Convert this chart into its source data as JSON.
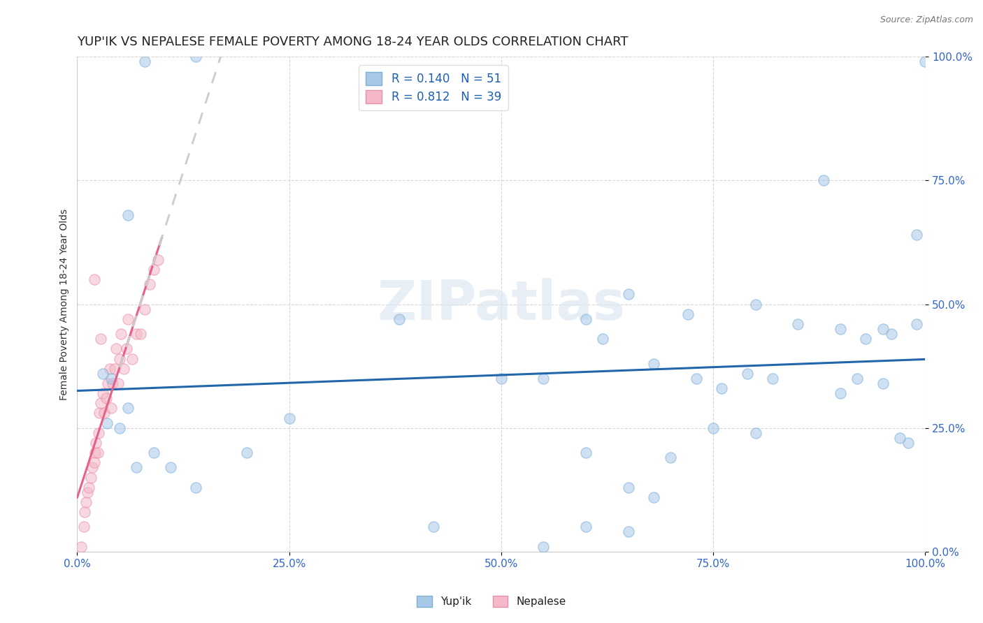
{
  "title": "YUP'IK VS NEPALESE FEMALE POVERTY AMONG 18-24 YEAR OLDS CORRELATION CHART",
  "source": "Source: ZipAtlas.com",
  "ylabel": "Female Poverty Among 18-24 Year Olds",
  "xlim": [
    0.0,
    1.0
  ],
  "ylim": [
    0.0,
    1.0
  ],
  "xticks": [
    0.0,
    0.25,
    0.5,
    0.75,
    1.0
  ],
  "yticks": [
    0.0,
    0.25,
    0.5,
    0.75,
    1.0
  ],
  "xticklabels": [
    "0.0%",
    "25.0%",
    "50.0%",
    "75.0%",
    "100.0%"
  ],
  "yticklabels": [
    "0.0%",
    "25.0%",
    "50.0%",
    "75.0%",
    "100.0%"
  ],
  "yup_ik_color": "#a8c8e8",
  "yup_ik_edge": "#7bafd4",
  "nepalese_color": "#f4b8c8",
  "nepalese_edge": "#e890a8",
  "trendline_yupik_color": "#2166ac",
  "trendline_nepalese_solid_color": "#e8608a",
  "trendline_nepalese_dash_color": "#cccccc",
  "background_color": "#ffffff",
  "watermark": "ZIPatlas",
  "legend_R_yupik": "R = 0.140",
  "legend_N_yupik": "N = 51",
  "legend_R_nepalese": "R = 0.812",
  "legend_N_nepalese": "N = 39",
  "yupik_points": [
    [
      0.08,
      0.99
    ],
    [
      0.14,
      1.0
    ],
    [
      0.06,
      0.68
    ],
    [
      0.6,
      0.47
    ],
    [
      0.38,
      0.47
    ],
    [
      0.65,
      0.52
    ],
    [
      0.72,
      0.48
    ],
    [
      0.8,
      0.5
    ],
    [
      0.85,
      0.46
    ],
    [
      0.88,
      0.75
    ],
    [
      0.9,
      0.45
    ],
    [
      0.93,
      0.43
    ],
    [
      0.95,
      0.45
    ],
    [
      0.96,
      0.44
    ],
    [
      0.98,
      0.22
    ],
    [
      1.0,
      0.99
    ],
    [
      0.99,
      0.64
    ],
    [
      0.99,
      0.46
    ],
    [
      0.62,
      0.43
    ],
    [
      0.55,
      0.35
    ],
    [
      0.68,
      0.38
    ],
    [
      0.73,
      0.35
    ],
    [
      0.76,
      0.33
    ],
    [
      0.79,
      0.36
    ],
    [
      0.82,
      0.35
    ],
    [
      0.9,
      0.32
    ],
    [
      0.92,
      0.35
    ],
    [
      0.95,
      0.34
    ],
    [
      0.6,
      0.2
    ],
    [
      0.7,
      0.19
    ],
    [
      0.65,
      0.13
    ],
    [
      0.68,
      0.11
    ],
    [
      0.75,
      0.25
    ],
    [
      0.8,
      0.24
    ],
    [
      0.97,
      0.23
    ],
    [
      0.5,
      0.35
    ],
    [
      0.42,
      0.05
    ],
    [
      0.6,
      0.05
    ],
    [
      0.65,
      0.04
    ],
    [
      0.55,
      0.01
    ],
    [
      0.2,
      0.2
    ],
    [
      0.25,
      0.27
    ],
    [
      0.04,
      0.35
    ],
    [
      0.03,
      0.36
    ],
    [
      0.035,
      0.26
    ],
    [
      0.05,
      0.25
    ],
    [
      0.06,
      0.29
    ],
    [
      0.07,
      0.17
    ],
    [
      0.09,
      0.2
    ],
    [
      0.11,
      0.17
    ],
    [
      0.14,
      0.13
    ]
  ],
  "nepalese_points": [
    [
      0.005,
      0.01
    ],
    [
      0.008,
      0.05
    ],
    [
      0.009,
      0.08
    ],
    [
      0.01,
      0.1
    ],
    [
      0.012,
      0.12
    ],
    [
      0.014,
      0.13
    ],
    [
      0.016,
      0.15
    ],
    [
      0.018,
      0.17
    ],
    [
      0.02,
      0.18
    ],
    [
      0.021,
      0.2
    ],
    [
      0.022,
      0.22
    ],
    [
      0.024,
      0.2
    ],
    [
      0.025,
      0.24
    ],
    [
      0.026,
      0.28
    ],
    [
      0.028,
      0.3
    ],
    [
      0.03,
      0.32
    ],
    [
      0.032,
      0.28
    ],
    [
      0.034,
      0.31
    ],
    [
      0.036,
      0.34
    ],
    [
      0.038,
      0.37
    ],
    [
      0.04,
      0.29
    ],
    [
      0.042,
      0.34
    ],
    [
      0.044,
      0.37
    ],
    [
      0.046,
      0.41
    ],
    [
      0.048,
      0.34
    ],
    [
      0.05,
      0.39
    ],
    [
      0.052,
      0.44
    ],
    [
      0.055,
      0.37
    ],
    [
      0.058,
      0.41
    ],
    [
      0.06,
      0.47
    ],
    [
      0.065,
      0.39
    ],
    [
      0.07,
      0.44
    ],
    [
      0.075,
      0.44
    ],
    [
      0.08,
      0.49
    ],
    [
      0.085,
      0.54
    ],
    [
      0.09,
      0.57
    ],
    [
      0.095,
      0.59
    ],
    [
      0.028,
      0.43
    ],
    [
      0.02,
      0.55
    ]
  ],
  "title_fontsize": 13,
  "axis_label_fontsize": 10,
  "tick_fontsize": 11,
  "legend_fontsize": 12,
  "marker_size": 120,
  "marker_alpha": 0.55,
  "grid_color": "#cccccc",
  "grid_alpha": 0.8,
  "yupik_trend_x0": 0.0,
  "yupik_trend_x1": 1.0,
  "nepalese_trend_solid_x0": 0.0,
  "nepalese_trend_solid_x1": 0.1,
  "nepalese_trend_dash_x0": 0.05,
  "nepalese_trend_dash_x1": 0.22
}
